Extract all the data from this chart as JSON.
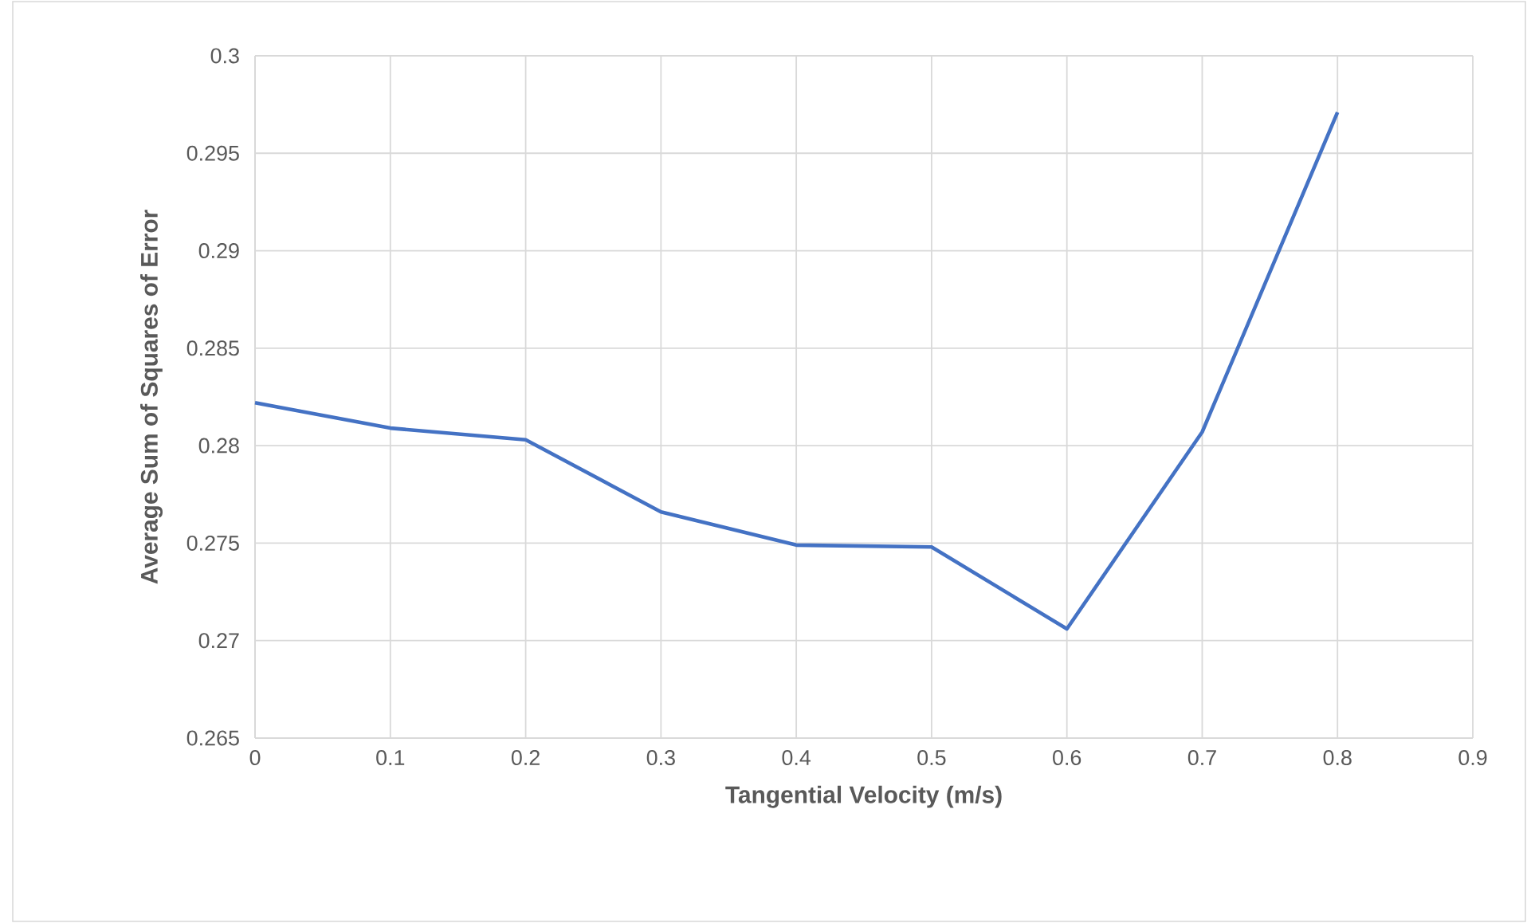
{
  "chart_data": {
    "type": "line",
    "xlabel": "Tangential Velocity (m/s)",
    "ylabel": "Average Sum of Squares of Error",
    "x": [
      0,
      0.1,
      0.2,
      0.3,
      0.4,
      0.5,
      0.6,
      0.7,
      0.8
    ],
    "series": [
      {
        "color": "#4472c4",
        "values": [
          0.2822,
          0.2809,
          0.2803,
          0.2766,
          0.2749,
          0.2748,
          0.2706,
          0.2807,
          0.2971
        ]
      }
    ],
    "xlim": [
      0,
      0.9
    ],
    "xticks": [
      0,
      0.1,
      0.2,
      0.3,
      0.4,
      0.5,
      0.6,
      0.7,
      0.8,
      0.9
    ],
    "ylim": [
      0.265,
      0.3
    ],
    "yticks": [
      0.265,
      0.27,
      0.275,
      0.28,
      0.285,
      0.29,
      0.295,
      0.3
    ],
    "grid": true,
    "marker": "none",
    "line_style": "solid"
  }
}
